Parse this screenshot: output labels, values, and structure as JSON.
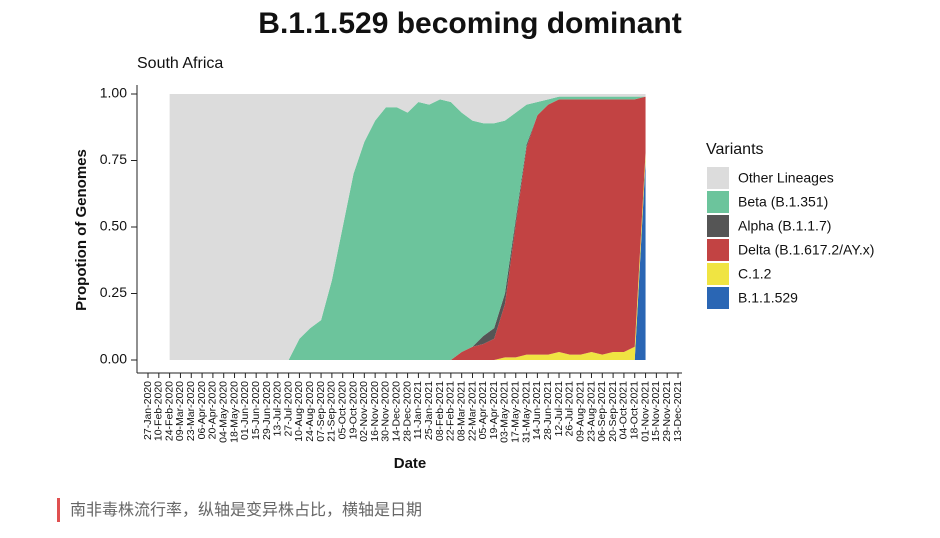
{
  "chart_data": {
    "type": "stacked_area",
    "title": "B.1.1.529 becoming dominant",
    "subtitle": "South Africa",
    "x_label": "Date",
    "y_label": "Propotion of Genomes",
    "legend_title": "Variants",
    "legend_position": "right",
    "categories": [
      "27-Jan-2020",
      "10-Feb-2020",
      "24-Feb-2020",
      "09-Mar-2020",
      "23-Mar-2020",
      "06-Apr-2020",
      "20-Apr-2020",
      "04-May-2020",
      "18-May-2020",
      "01-Jun-2020",
      "15-Jun-2020",
      "29-Jun-2020",
      "13-Jul-2020",
      "27-Jul-2020",
      "10-Aug-2020",
      "24-Aug-2020",
      "07-Sep-2020",
      "21-Sep-2020",
      "05-Oct-2020",
      "19-Oct-2020",
      "02-Nov-2020",
      "16-Nov-2020",
      "30-Nov-2020",
      "14-Dec-2020",
      "28-Dec-2020",
      "11-Jan-2021",
      "25-Jan-2021",
      "08-Feb-2021",
      "22-Feb-2021",
      "08-Mar-2021",
      "22-Mar-2021",
      "05-Apr-2021",
      "19-Apr-2021",
      "03-May-2021",
      "17-May-2021",
      "31-May-2021",
      "14-Jun-2021",
      "28-Jun-2021",
      "12-Jul-2021",
      "26-Jul-2021",
      "09-Aug-2021",
      "23-Aug-2021",
      "06-Sep-2021",
      "20-Sep-2021",
      "04-Oct-2021",
      "18-Oct-2021",
      "01-Nov-2021",
      "15-Nov-2021",
      "29-Nov-2021",
      "13-Dec-2021"
    ],
    "series": [
      {
        "name": "Other Lineages",
        "color": "#dcdcdc",
        "values": [
          null,
          null,
          1,
          1,
          1,
          1,
          1,
          1,
          1,
          1,
          1,
          1,
          1,
          1,
          0.92,
          0.88,
          0.85,
          0.7,
          0.5,
          0.3,
          0.18,
          0.1,
          0.05,
          0.05,
          0.07,
          0.03,
          0.04,
          0.02,
          0.03,
          0.07,
          0.1,
          0.11,
          0.11,
          0.1,
          0.07,
          0.04,
          0.03,
          0.02,
          0.01,
          0.01,
          0.01,
          0.01,
          0.01,
          0.01,
          0.01,
          0.01,
          0.01,
          null,
          null,
          null
        ]
      },
      {
        "name": "Beta (B.1.351)",
        "color": "#6cc49c",
        "values": [
          null,
          null,
          0,
          0,
          0,
          0,
          0,
          0,
          0,
          0,
          0,
          0,
          0,
          0,
          0.08,
          0.12,
          0.15,
          0.3,
          0.5,
          0.7,
          0.82,
          0.9,
          0.95,
          0.95,
          0.93,
          0.97,
          0.96,
          0.98,
          0.97,
          0.9,
          0.85,
          0.8,
          0.77,
          0.65,
          0.4,
          0.15,
          0.05,
          0.02,
          0.01,
          0.01,
          0.01,
          0.01,
          0.01,
          0.01,
          0.01,
          0.01,
          0,
          null,
          null,
          null
        ]
      },
      {
        "name": "Alpha (B.1.1.7)",
        "color": "#555555",
        "values": [
          null,
          null,
          0,
          0,
          0,
          0,
          0,
          0,
          0,
          0,
          0,
          0,
          0,
          0,
          0,
          0,
          0,
          0,
          0,
          0,
          0,
          0,
          0,
          0,
          0,
          0,
          0,
          0,
          0,
          0,
          0,
          0.03,
          0.04,
          0.04,
          0.02,
          0.01,
          0,
          0,
          0,
          0,
          0,
          0,
          0,
          0,
          0,
          0,
          0,
          null,
          null,
          null
        ]
      },
      {
        "name": "Delta (B.1.617.2/AY.x)",
        "color": "#c24343",
        "values": [
          null,
          null,
          0,
          0,
          0,
          0,
          0,
          0,
          0,
          0,
          0,
          0,
          0,
          0,
          0,
          0,
          0,
          0,
          0,
          0,
          0,
          0,
          0,
          0,
          0,
          0,
          0,
          0,
          0,
          0.03,
          0.05,
          0.06,
          0.08,
          0.2,
          0.5,
          0.78,
          0.9,
          0.94,
          0.95,
          0.96,
          0.96,
          0.95,
          0.96,
          0.95,
          0.95,
          0.93,
          0.21,
          null,
          null,
          null
        ]
      },
      {
        "name": "C.1.2",
        "color": "#f0e442",
        "values": [
          null,
          null,
          0,
          0,
          0,
          0,
          0,
          0,
          0,
          0,
          0,
          0,
          0,
          0,
          0,
          0,
          0,
          0,
          0,
          0,
          0,
          0,
          0,
          0,
          0,
          0,
          0,
          0,
          0,
          0,
          0,
          0,
          0,
          0.01,
          0.01,
          0.02,
          0.02,
          0.02,
          0.03,
          0.02,
          0.02,
          0.03,
          0.02,
          0.03,
          0.03,
          0.05,
          0.03,
          null,
          null,
          null
        ]
      },
      {
        "name": "B.1.1.529",
        "color": "#2a66b4",
        "values": [
          null,
          null,
          0,
          0,
          0,
          0,
          0,
          0,
          0,
          0,
          0,
          0,
          0,
          0,
          0,
          0,
          0,
          0,
          0,
          0,
          0,
          0,
          0,
          0,
          0,
          0,
          0,
          0,
          0,
          0,
          0,
          0,
          0,
          0,
          0,
          0,
          0,
          0,
          0,
          0,
          0,
          0,
          0,
          0,
          0,
          0,
          0.75,
          null,
          null,
          null
        ]
      }
    ],
    "ylim": [
      0,
      1
    ],
    "yticks": [
      {
        "value": 0,
        "label": "0.00"
      },
      0.25,
      {
        "value": 0.5,
        "label": "0.50"
      },
      0.75,
      {
        "value": 1,
        "label": "1.00"
      }
    ],
    "grid": false
  },
  "caption": "南非毒株流行率，纵轴是变异株占比，横轴是日期"
}
